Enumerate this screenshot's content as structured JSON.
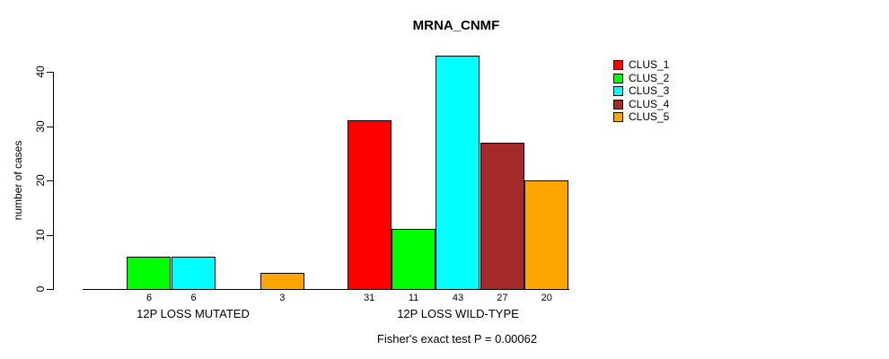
{
  "chart_data": {
    "type": "bar",
    "title": "MRNA_CNMF",
    "subtitle": "Fisher's exact test P = 0.00062",
    "xlabel": "",
    "ylabel": "number of cases",
    "categories": [
      "12P LOSS MUTATED",
      "12P LOSS WILD-TYPE"
    ],
    "series": [
      {
        "name": "CLUS_1",
        "color": "#FF0000",
        "values": [
          0,
          31
        ]
      },
      {
        "name": "CLUS_2",
        "color": "#00FF00",
        "values": [
          6,
          11
        ]
      },
      {
        "name": "CLUS_3",
        "color": "#00FFFF",
        "values": [
          6,
          43
        ]
      },
      {
        "name": "CLUS_4",
        "color": "#A52A2A",
        "values": [
          0,
          27
        ]
      },
      {
        "name": "CLUS_5",
        "color": "#FFA500",
        "values": [
          3,
          20
        ]
      }
    ],
    "bar_value_labels": {
      "shown_only_for_positive_values": true,
      "group_1": [
        "6",
        "6",
        "3"
      ],
      "group_2": [
        "31",
        "11",
        "43",
        "27",
        "20"
      ]
    },
    "ylim": [
      0,
      40
    ],
    "yticks": [
      "0",
      "10",
      "20",
      "30",
      "40"
    ],
    "grid": false,
    "legend_position": "top-right",
    "axis_color": "#000000",
    "background_color": "#FFFFFF"
  }
}
